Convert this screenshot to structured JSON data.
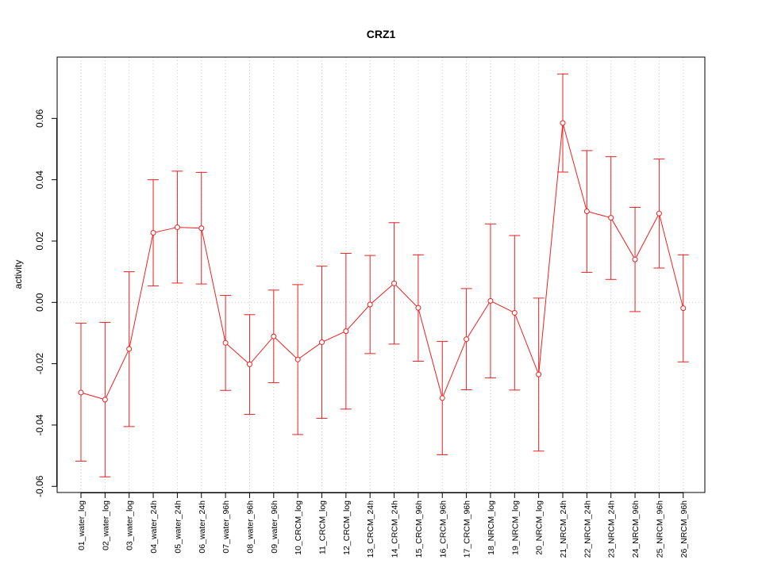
{
  "chart_data": {
    "type": "line",
    "title": "CRZ1",
    "xlabel": "",
    "ylabel": "activity",
    "ylim": [
      -0.062,
      0.08
    ],
    "yticks": [
      -0.06,
      -0.04,
      -0.02,
      0.0,
      0.02,
      0.04,
      0.06
    ],
    "ytick_labels": [
      "-0.06",
      "-0.04",
      "-0.02",
      "0.00",
      "0.02",
      "0.04",
      "0.06"
    ],
    "grid": true,
    "colors": {
      "series": "#ee2020",
      "grid": "#c8c8c8",
      "frame": "#000000"
    },
    "categories": [
      "01_water_log",
      "02_water_log",
      "03_water_log",
      "04_water_24h",
      "05_water_24h",
      "06_water_24h",
      "07_water_96h",
      "08_water_96h",
      "09_water_96h",
      "10_CRCM_log",
      "11_CRCM_log",
      "12_CRCM_log",
      "13_CRCM_24h",
      "14_CRCM_24h",
      "15_CRCM_96h",
      "16_CRCM_96h",
      "17_CRCM_96h",
      "18_NRCM_log",
      "19_NRCM_log",
      "20_NRCM_log",
      "21_NRCM_24h",
      "22_NRCM_24h",
      "23_NRCM_24h",
      "24_NRCM_96h",
      "25_NRCM_96h",
      "26_NRCM_96h"
    ],
    "series": [
      {
        "values": [
          -0.0294,
          -0.0317,
          -0.0152,
          0.0227,
          0.0245,
          0.0242,
          -0.0132,
          -0.0202,
          -0.0111,
          -0.0186,
          -0.013,
          -0.0094,
          -0.0007,
          0.0062,
          -0.0018,
          -0.0312,
          -0.012,
          0.0005,
          -0.0034,
          -0.0235,
          0.0585,
          0.0297,
          0.0276,
          0.014,
          0.029,
          -0.0019
        ],
        "upper": [
          -0.0068,
          -0.0065,
          0.01,
          0.04,
          0.0428,
          0.0424,
          0.0023,
          -0.004,
          0.004,
          0.0058,
          0.0118,
          0.016,
          0.0153,
          0.026,
          0.0155,
          -0.0127,
          0.0045,
          0.0256,
          0.0218,
          0.0014,
          0.0745,
          0.0495,
          0.0475,
          0.031,
          0.0468,
          0.0155
        ],
        "lower": [
          -0.0518,
          -0.0569,
          -0.0405,
          0.0054,
          0.0063,
          0.006,
          -0.0287,
          -0.0365,
          -0.0262,
          -0.0431,
          -0.0378,
          -0.0348,
          -0.0167,
          -0.0136,
          -0.0192,
          -0.0497,
          -0.0285,
          -0.0246,
          -0.0286,
          -0.0485,
          0.0425,
          0.0098,
          0.0075,
          -0.003,
          0.0112,
          -0.0194
        ]
      }
    ]
  }
}
